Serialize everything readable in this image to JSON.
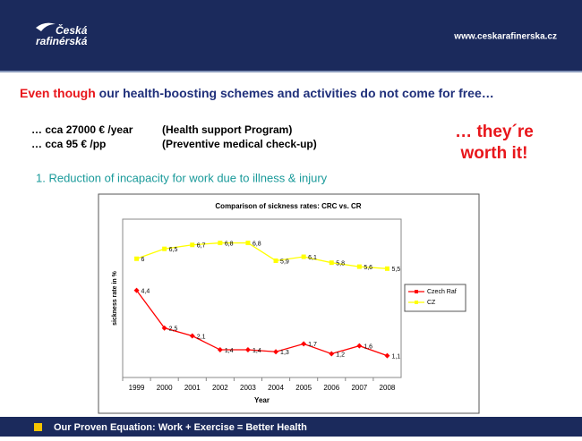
{
  "header": {
    "logo_line1": "Česká",
    "logo_line2": "rafinérská",
    "url": "www.ceskarafinerska.cz"
  },
  "headline": {
    "lead": "Even though",
    "rest": "our health-boosting schemes and activities do not come for free…"
  },
  "costs": [
    {
      "amount": "… cca 27000 € /year",
      "note": "(Health support Program)"
    },
    {
      "amount": "… cca 95 € /pp",
      "note": "(Preventive medical check-up)"
    }
  ],
  "claim": {
    "line1": "… they´re",
    "line2": "worth it!"
  },
  "point": "1. Reduction of incapacity for work due to illness & injury",
  "footer": "Our Proven Equation: Work + Exercise = Better Health",
  "chart_data": {
    "type": "line",
    "title": "Comparison of sickness rates: CRC vs. CR",
    "x_label": "Year",
    "y_label": "sickness rate in %",
    "categories": [
      "1999",
      "2000",
      "2001",
      "2002",
      "2003",
      "2004",
      "2005",
      "2006",
      "2007",
      "2008"
    ],
    "ylim": [
      0,
      8
    ],
    "series": [
      {
        "name": "Czech Raf",
        "color": "#ff0000",
        "marker": "diamond",
        "values": [
          4.4,
          2.5,
          2.1,
          1.4,
          1.4,
          1.3,
          1.7,
          1.2,
          1.6,
          1.1
        ],
        "value_labels": [
          "4,4",
          "2,5",
          "2,1",
          "1,4",
          "1,4",
          "1,3",
          "1,7",
          "1,2",
          "1,6",
          "1,1"
        ]
      },
      {
        "name": "CZ",
        "color": "#ffff00",
        "marker": "square",
        "values": [
          6,
          6.5,
          6.7,
          6.8,
          6.8,
          5.9,
          6.1,
          5.8,
          5.6,
          5.5
        ],
        "value_labels": [
          "6",
          "6,5",
          "6,7",
          "6,8",
          "6,8",
          "5,9",
          "6,1",
          "5,8",
          "5,6",
          "5,5"
        ]
      }
    ],
    "legend": "right"
  }
}
